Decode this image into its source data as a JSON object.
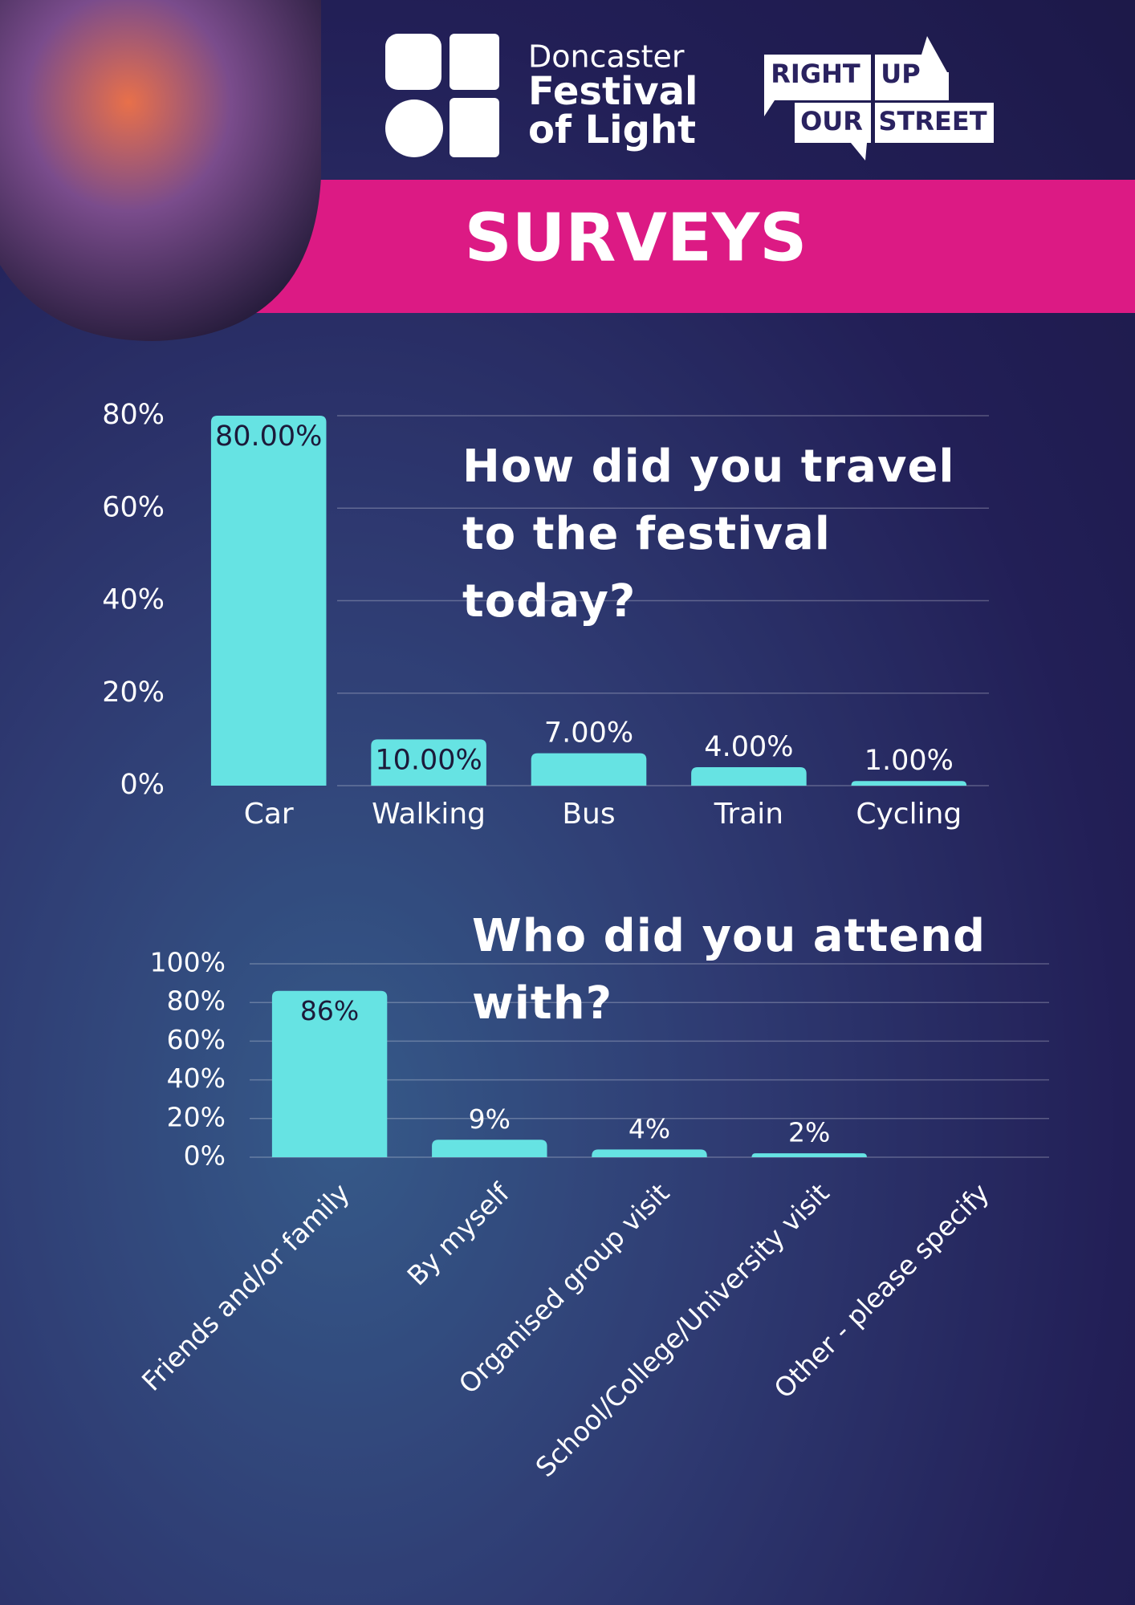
{
  "header": {
    "brand": [
      "Doncaster",
      "Festival",
      "of Light"
    ],
    "partner": [
      "RIGHT",
      "UP",
      "OUR",
      "STREET"
    ],
    "title": "SURVEYS"
  },
  "chart_data": [
    {
      "type": "bar",
      "title": "How did you travel to the festival today?",
      "categories": [
        "Car",
        "Walking",
        "Bus",
        "Train",
        "Cycling"
      ],
      "values": [
        80,
        10,
        7,
        4,
        1
      ],
      "value_labels": [
        "80.00%",
        "10.00%",
        "7.00%",
        "4.00%",
        "1.00%"
      ],
      "color": "#66e3e3",
      "ylim": [
        0,
        80
      ],
      "yticks": [
        {
          "value": 0,
          "label": "0%"
        },
        {
          "value": 20,
          "label": "20%"
        },
        {
          "value": 40,
          "label": "40%"
        },
        {
          "value": 60,
          "label": "60%"
        },
        {
          "value": 80,
          "label": "80%"
        }
      ],
      "grid": true
    },
    {
      "type": "bar",
      "title": "Who did you attend with?",
      "categories": [
        "Friends and/or family",
        "By myself",
        "Organised group visit",
        "School/College/University visit",
        "Other - please specify"
      ],
      "values": [
        86,
        9,
        4,
        2,
        null
      ],
      "value_labels": [
        "86%",
        "9%",
        "4%",
        "2%",
        null
      ],
      "color": "#66e3e3",
      "ylim": [
        0,
        100
      ],
      "yticks": [
        {
          "value": 0,
          "label": "0%"
        },
        {
          "value": 20,
          "label": "20%"
        },
        {
          "value": 40,
          "label": "40%"
        },
        {
          "value": 60,
          "label": "60%"
        },
        {
          "value": 80,
          "label": "80%"
        },
        {
          "value": 100,
          "label": "100%"
        }
      ],
      "grid": true
    }
  ]
}
